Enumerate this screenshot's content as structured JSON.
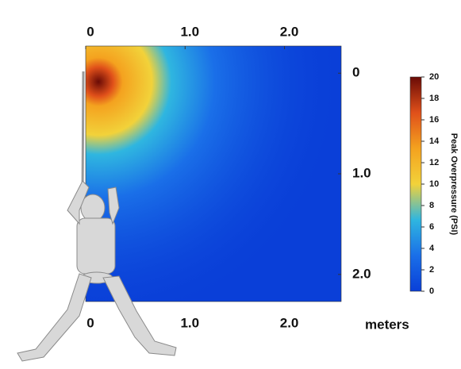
{
  "chart_data": {
    "type": "heatmap",
    "x_label": "meters",
    "colorbar_label": "Peak Overpressure (PSI)",
    "xlim": [
      0,
      2.57
    ],
    "xticks": [
      0,
      {
        "value": 1,
        "label": "1.0"
      },
      {
        "value": 2,
        "label": "2.0"
      }
    ],
    "ylim": [
      -0.27,
      2.27
    ],
    "yticks": [
      0,
      {
        "value": 1,
        "label": "1.0"
      },
      {
        "value": 2,
        "label": "2.0"
      }
    ],
    "clim": [
      0,
      20
    ],
    "cticks": [
      0,
      2,
      4,
      6,
      8,
      10,
      12,
      14,
      16,
      18,
      20
    ],
    "colormap": [
      "#0a3fd8",
      "#1a6fe8",
      "#2fb6e0",
      "#f2d23a",
      "#f4a21f",
      "#e0501a",
      "#6a0b06"
    ]
  }
}
